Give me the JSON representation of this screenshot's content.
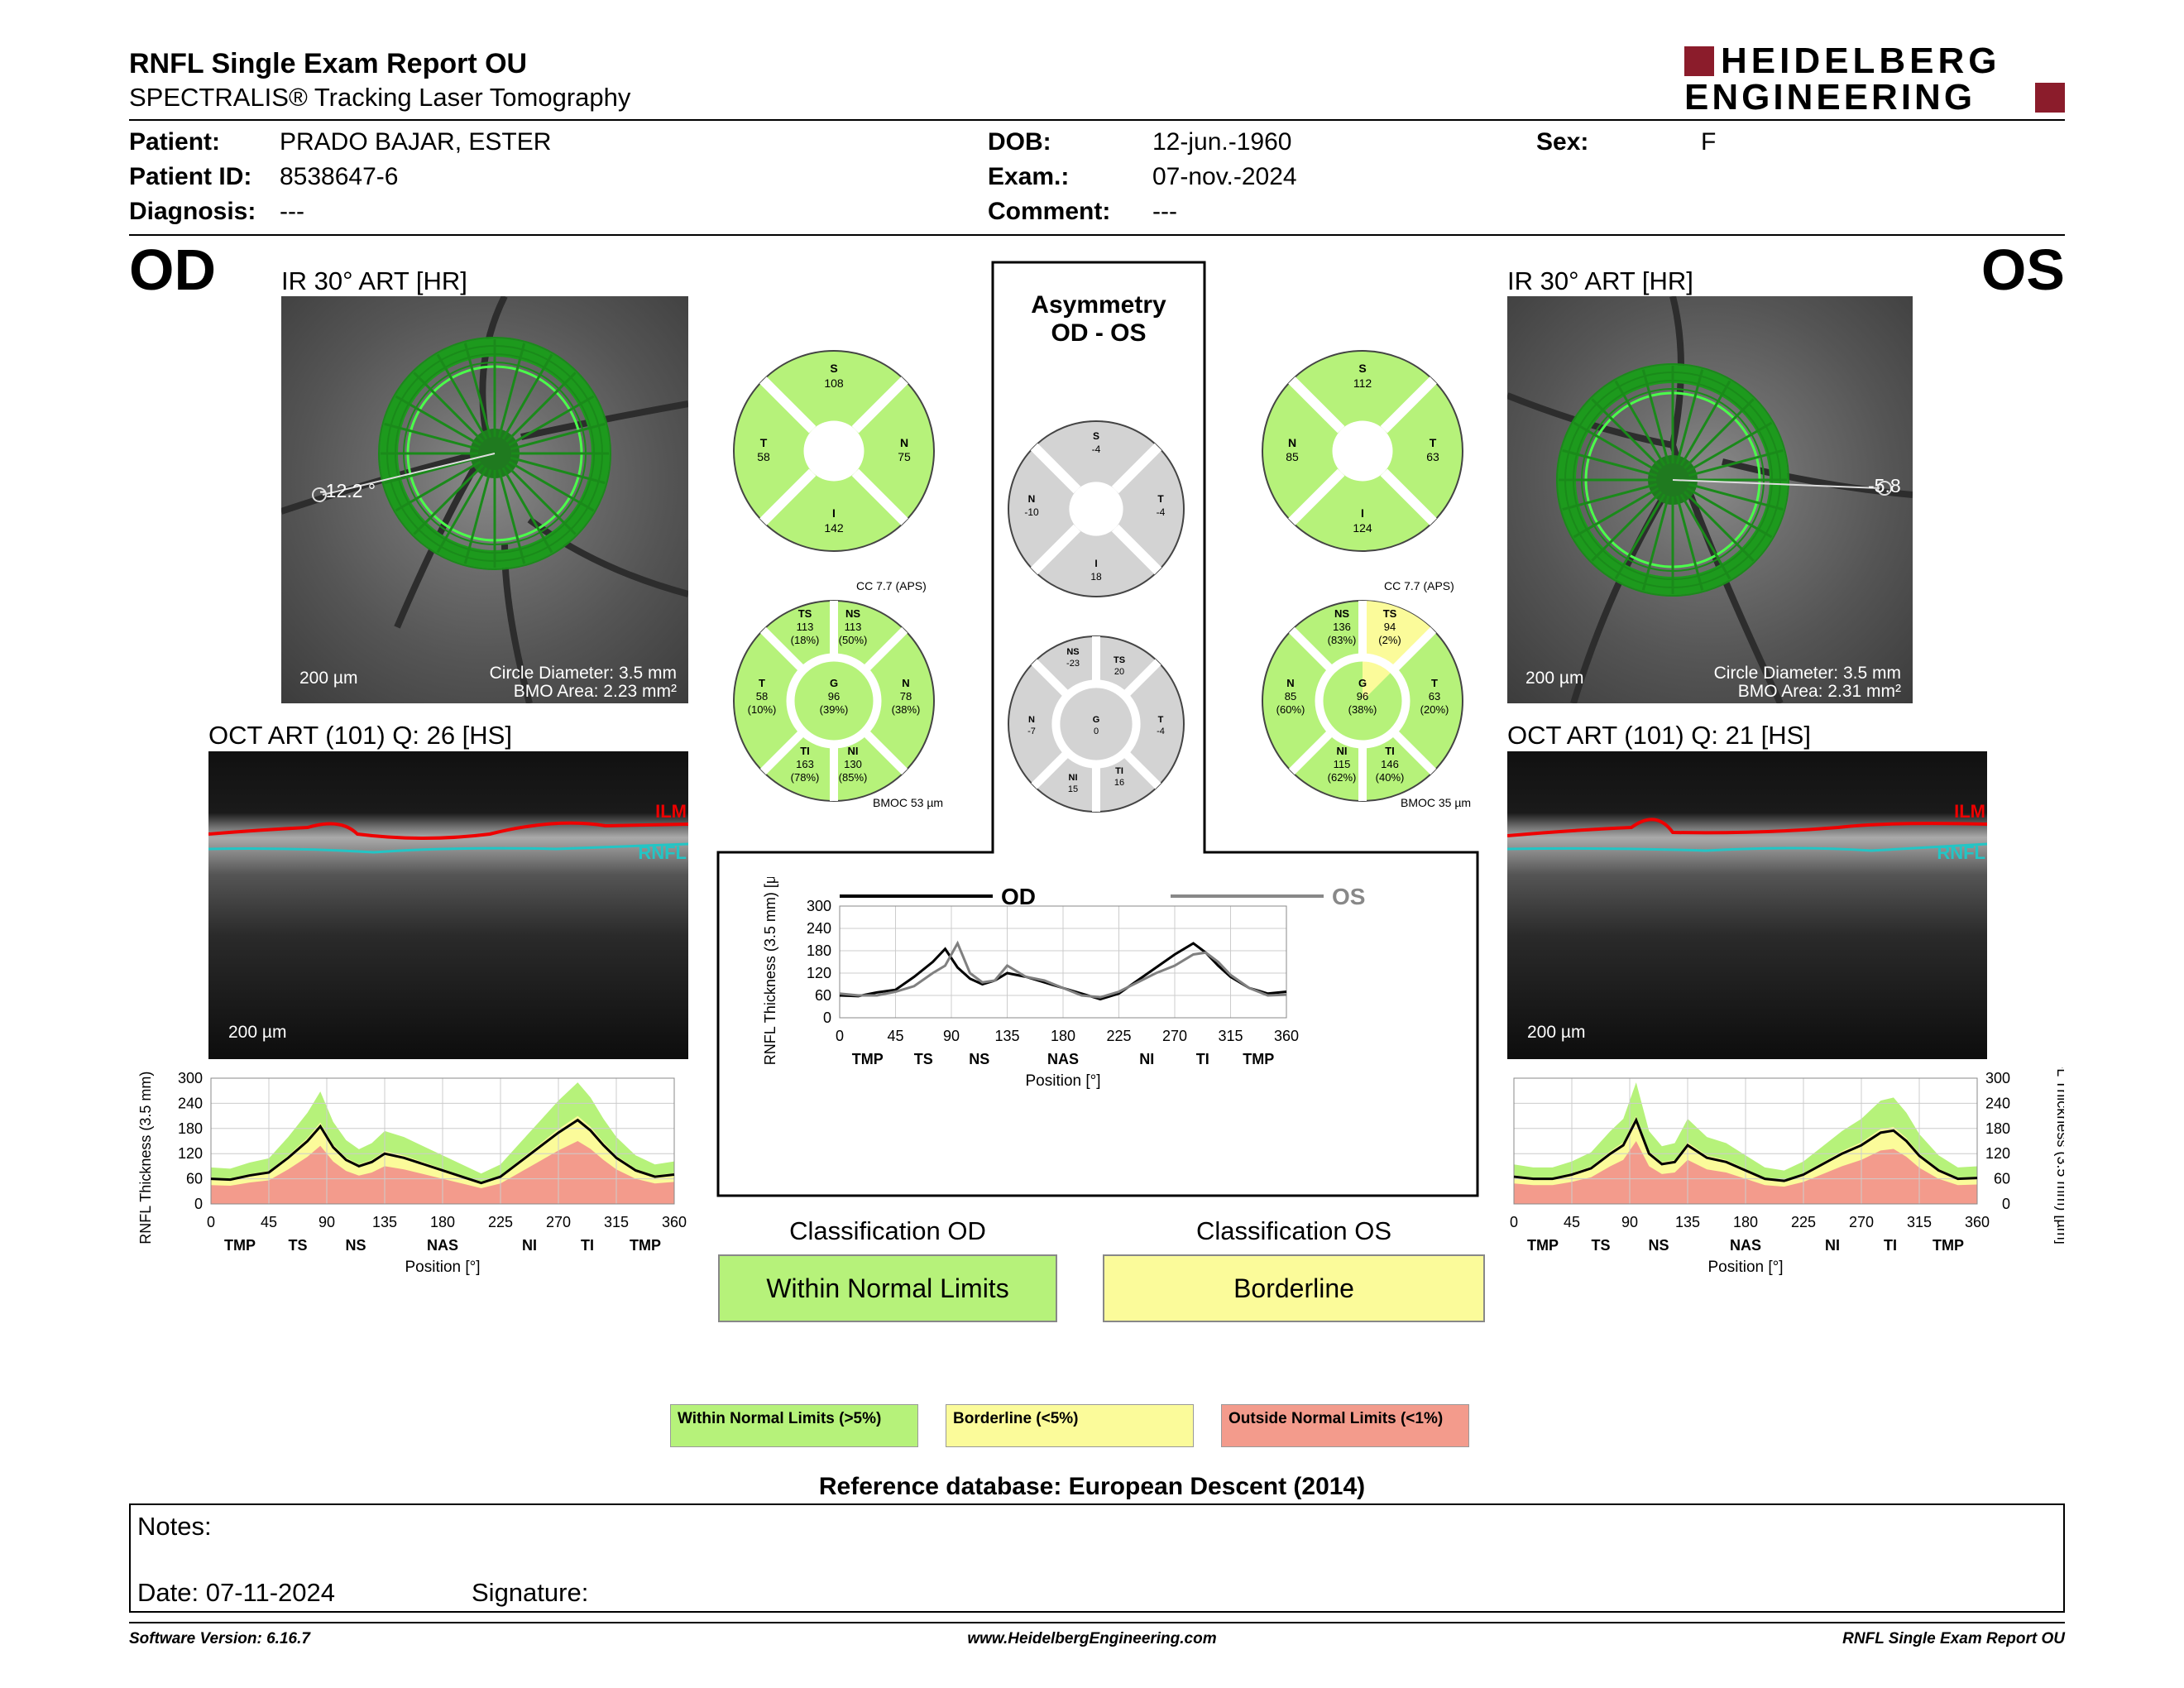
{
  "header": {
    "title": "RNFL Single Exam Report OU",
    "subtitle": "SPECTRALIS® Tracking Laser Tomography",
    "logo_line1": "HEIDELBERG",
    "logo_line2": "ENGINEERING"
  },
  "patient": {
    "patient_label": "Patient:",
    "patient_value": "PRADO BAJAR, ESTER",
    "id_label": "Patient ID:",
    "id_value": "8538647-6",
    "diag_label": "Diagnosis:",
    "diag_value": "---",
    "dob_label": "DOB:",
    "dob_value": "12-jun.-1960",
    "exam_label": "Exam.:",
    "exam_value": "07-nov.-2024",
    "comment_label": "Comment:",
    "comment_value": "---",
    "sex_label": "Sex:",
    "sex_value": "F"
  },
  "od": {
    "eye": "OD",
    "ir_title": "IR 30° ART [HR]",
    "angle": "-12.2 °",
    "scale": "200 µm",
    "circle_diameter": "Circle Diameter: 3.5 mm",
    "bmo_area": "BMO Area: 2.23 mm²",
    "oct_title": "OCT ART (101) Q: 26 [HS]",
    "oct_scale": "200 µm",
    "ilm": "ILM",
    "rnfl": "RNFL",
    "quad": {
      "S": "108",
      "T": "58",
      "N": "75",
      "I": "142"
    },
    "cc": "CC 7.7 (APS)",
    "bmoc": "BMOC 53 µm",
    "sectors": {
      "TS": "113",
      "TS_p": "(18%)",
      "NS": "113",
      "NS_p": "(50%)",
      "T": "58",
      "T_p": "(10%)",
      "G": "96",
      "G_p": "(39%)",
      "N": "78",
      "N_p": "(38%)",
      "TI": "163",
      "TI_p": "(78%)",
      "NI": "130",
      "NI_p": "(85%)"
    }
  },
  "os": {
    "eye": "OS",
    "ir_title": "IR 30° ART [HR]",
    "angle": "-5.8",
    "scale": "200 µm",
    "circle_diameter": "Circle Diameter: 3.5 mm",
    "bmo_area": "BMO Area: 2.31 mm²",
    "oct_title": "OCT ART (101) Q: 21 [HS]",
    "oct_scale": "200 µm",
    "ilm": "ILM",
    "rnfl": "RNFL",
    "quad": {
      "S": "112",
      "N": "85",
      "T": "63",
      "I": "124"
    },
    "cc": "CC 7.7 (APS)",
    "bmoc": "BMOC 35 µm",
    "sectors": {
      "NS": "136",
      "NS_p": "(83%)",
      "TS": "94",
      "TS_p": "(2%)",
      "N": "85",
      "N_p": "(60%)",
      "G": "96",
      "G_p": "(38%)",
      "T": "63",
      "T_p": "(20%)",
      "NI": "115",
      "NI_p": "(62%)",
      "TI": "146",
      "TI_p": "(40%)"
    }
  },
  "asym": {
    "title1": "Asymmetry",
    "title2": "OD - OS",
    "quad": {
      "S": "-4",
      "N": "-10",
      "T": "-4",
      "I": "18"
    },
    "sectors": {
      "NS": "-23",
      "TS": "20",
      "N": "-7",
      "G": "0",
      "T": "-4",
      "NI": "15",
      "TI": "16"
    }
  },
  "chart_labels": {
    "ylabel": "RNFL Thickness (3.5 mm) [µm]",
    "xlabel": "Position [°]",
    "od_legend": "OD",
    "os_legend": "OS",
    "yticks": [
      "0",
      "60",
      "120",
      "180",
      "240",
      "300"
    ],
    "xticks": [
      "0",
      "45",
      "90",
      "135",
      "180",
      "225",
      "270",
      "315",
      "360"
    ],
    "sectors": [
      "TMP",
      "TS",
      "NS",
      "NAS",
      "NI",
      "TI",
      "TMP"
    ]
  },
  "chart_data": [
    {
      "type": "line",
      "title": "OD",
      "x": [
        0,
        15,
        30,
        45,
        60,
        75,
        85,
        95,
        105,
        115,
        125,
        135,
        150,
        165,
        180,
        195,
        210,
        225,
        240,
        255,
        270,
        285,
        295,
        305,
        315,
        330,
        345,
        360
      ],
      "series": [
        {
          "name": "OD",
          "values": [
            60,
            58,
            68,
            75,
            110,
            150,
            185,
            135,
            105,
            90,
            100,
            120,
            110,
            95,
            80,
            65,
            50,
            65,
            100,
            135,
            170,
            200,
            175,
            140,
            110,
            80,
            65,
            70
          ]
        }
      ],
      "ylim": [
        0,
        300
      ],
      "xlim": [
        0,
        360
      ],
      "xlabel": "Position [°]",
      "ylabel": "RNFL Thickness (3.5 mm) [µm]"
    },
    {
      "type": "line",
      "title": "OS",
      "x": [
        0,
        15,
        30,
        45,
        60,
        75,
        85,
        95,
        105,
        115,
        125,
        135,
        150,
        165,
        180,
        195,
        210,
        225,
        240,
        255,
        270,
        285,
        295,
        305,
        315,
        330,
        345,
        360
      ],
      "series": [
        {
          "name": "OS",
          "values": [
            65,
            60,
            60,
            70,
            85,
            120,
            140,
            200,
            120,
            95,
            100,
            140,
            110,
            100,
            80,
            60,
            55,
            70,
            95,
            120,
            140,
            170,
            175,
            150,
            115,
            80,
            60,
            62
          ]
        }
      ],
      "ylim": [
        0,
        300
      ],
      "xlim": [
        0,
        360
      ],
      "xlabel": "Position [°]",
      "ylabel": "RNFL Thickness (3.5 mm) [µm]"
    },
    {
      "type": "line",
      "title": "OD - OS",
      "x": [
        0,
        15,
        30,
        45,
        60,
        75,
        85,
        95,
        105,
        115,
        125,
        135,
        150,
        165,
        180,
        195,
        210,
        225,
        240,
        255,
        270,
        285,
        295,
        305,
        315,
        330,
        345,
        360
      ],
      "series": [
        {
          "name": "OD",
          "values": [
            60,
            58,
            68,
            75,
            110,
            150,
            185,
            135,
            105,
            90,
            100,
            120,
            110,
            95,
            80,
            65,
            50,
            65,
            100,
            135,
            170,
            200,
            175,
            140,
            110,
            80,
            65,
            70
          ]
        },
        {
          "name": "OS",
          "values": [
            65,
            60,
            60,
            70,
            85,
            120,
            140,
            200,
            120,
            95,
            100,
            140,
            110,
            100,
            80,
            60,
            55,
            70,
            95,
            120,
            140,
            170,
            175,
            150,
            115,
            80,
            60,
            62
          ]
        }
      ],
      "ylim": [
        0,
        300
      ],
      "xlim": [
        0,
        360
      ],
      "xlabel": "Position [°]",
      "ylabel": "RNFL Thickness (3.5 mm) [µm]"
    }
  ],
  "classification": {
    "od_title": "Classification OD",
    "od_value": "Within Normal Limits",
    "os_title": "Classification OS",
    "os_value": "Borderline"
  },
  "legend": {
    "green": "Within Normal Limits (>5%)",
    "yellow": "Borderline (<5%)",
    "red": "Outside Normal Limits (<1%)"
  },
  "reference": "Reference database: European Descent (2014)",
  "notes": {
    "label": "Notes:",
    "date": "Date: 07-11-2024",
    "signature": "Signature:"
  },
  "footer": {
    "version": "Software Version: 6.16.7",
    "url": "www.HeidelbergEngineering.com",
    "report": "RNFL Single Exam Report OU"
  },
  "colors": {
    "green": "#b6f27a",
    "yellow": "#fbfb9a",
    "red": "#f39b8c",
    "gray": "#d3d3d3",
    "od_line": "#000000",
    "os_line": "#808080"
  }
}
